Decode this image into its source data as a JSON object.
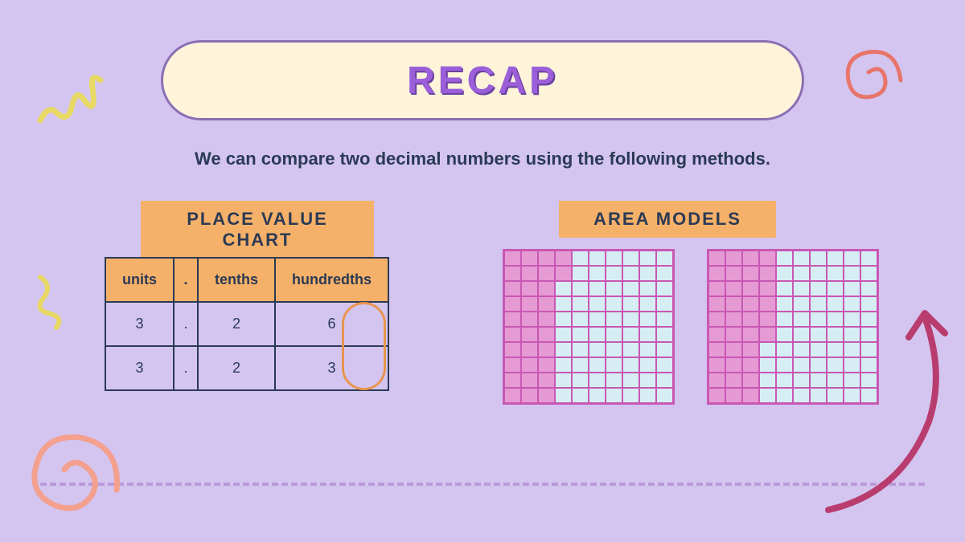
{
  "title": "RECAP",
  "subtitle": "We can compare two decimal numbers using the following methods.",
  "labels": {
    "placeValue": "PLACE VALUE CHART",
    "areaModels": "AREA MODELS"
  },
  "table": {
    "headers": [
      "units",
      ".",
      "tenths",
      "hundredths"
    ],
    "rows": [
      [
        "3",
        ".",
        "2",
        "6"
      ],
      [
        "3",
        ".",
        "2",
        "3"
      ]
    ]
  },
  "areaModels": {
    "grid1_filled": 32,
    "grid2_filled": 36,
    "fill_color": "#e59ad4",
    "empty_color": "#d6eef3",
    "border_color": "#c957b3"
  },
  "colors": {
    "background": "#d4c5f0",
    "titleBg": "#fdf4da",
    "titleText": "#9b5fd9",
    "labelBg": "#f5b169",
    "textDark": "#2b3a55",
    "highlight": "#e8954e"
  }
}
